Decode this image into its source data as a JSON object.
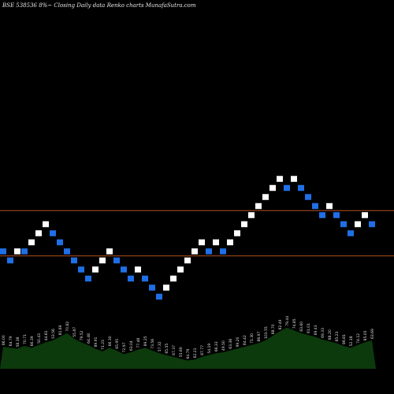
{
  "chart_data": {
    "type": "renko",
    "title": "BSE 538536  8%~  Closing Daily data  Renko  charts MunafaSutra.com",
    "colors": {
      "background": "#000000",
      "up_brick": "#ffffff",
      "down_brick": "#1f6fe6",
      "resistance_line": "#b4501e",
      "volume_area": "#0c3a0c",
      "volume_label": "#e0e0e0"
    },
    "reference_lines": [
      {
        "name": "upper",
        "level": 15.5
      },
      {
        "name": "lower",
        "level": 10.5
      }
    ],
    "price_range": [
      -3,
      37
    ],
    "bricks": [
      {
        "level": 11,
        "dir": "down"
      },
      {
        "level": 10,
        "dir": "down"
      },
      {
        "level": 11,
        "dir": "up"
      },
      {
        "level": 11,
        "dir": "down"
      },
      {
        "level": 12,
        "dir": "up"
      },
      {
        "level": 13,
        "dir": "up"
      },
      {
        "level": 14,
        "dir": "up"
      },
      {
        "level": 13,
        "dir": "down"
      },
      {
        "level": 12,
        "dir": "down"
      },
      {
        "level": 11,
        "dir": "down"
      },
      {
        "level": 10,
        "dir": "down"
      },
      {
        "level": 9,
        "dir": "down"
      },
      {
        "level": 8,
        "dir": "down"
      },
      {
        "level": 9,
        "dir": "up"
      },
      {
        "level": 10,
        "dir": "up"
      },
      {
        "level": 11,
        "dir": "up"
      },
      {
        "level": 10,
        "dir": "down"
      },
      {
        "level": 9,
        "dir": "down"
      },
      {
        "level": 8,
        "dir": "down"
      },
      {
        "level": 9,
        "dir": "up"
      },
      {
        "level": 8,
        "dir": "down"
      },
      {
        "level": 7,
        "dir": "down"
      },
      {
        "level": 6,
        "dir": "down"
      },
      {
        "level": 7,
        "dir": "up"
      },
      {
        "level": 8,
        "dir": "up"
      },
      {
        "level": 9,
        "dir": "up"
      },
      {
        "level": 10,
        "dir": "up"
      },
      {
        "level": 11,
        "dir": "up"
      },
      {
        "level": 12,
        "dir": "up"
      },
      {
        "level": 11,
        "dir": "down"
      },
      {
        "level": 12,
        "dir": "up"
      },
      {
        "level": 11,
        "dir": "down"
      },
      {
        "level": 12,
        "dir": "up"
      },
      {
        "level": 13,
        "dir": "up"
      },
      {
        "level": 14,
        "dir": "up"
      },
      {
        "level": 15,
        "dir": "up"
      },
      {
        "level": 16,
        "dir": "up"
      },
      {
        "level": 17,
        "dir": "up"
      },
      {
        "level": 18,
        "dir": "up"
      },
      {
        "level": 19,
        "dir": "up"
      },
      {
        "level": 18,
        "dir": "down"
      },
      {
        "level": 19,
        "dir": "up"
      },
      {
        "level": 18,
        "dir": "down"
      },
      {
        "level": 17,
        "dir": "down"
      },
      {
        "level": 16,
        "dir": "down"
      },
      {
        "level": 15,
        "dir": "down"
      },
      {
        "level": 16,
        "dir": "up"
      },
      {
        "level": 15,
        "dir": "down"
      },
      {
        "level": 14,
        "dir": "down"
      },
      {
        "level": 13,
        "dir": "down"
      },
      {
        "level": 14,
        "dir": "up"
      },
      {
        "level": 15,
        "dir": "up"
      },
      {
        "level": 14,
        "dir": "down"
      }
    ],
    "volume": {
      "values": [
        0.48,
        0.46,
        0.44,
        0.5,
        0.46,
        0.52,
        0.58,
        0.62,
        0.7,
        0.78,
        0.66,
        0.58,
        0.52,
        0.44,
        0.38,
        0.46,
        0.4,
        0.32,
        0.36,
        0.42,
        0.46,
        0.4,
        0.34,
        0.3,
        0.26,
        0.22,
        0.18,
        0.2,
        0.26,
        0.3,
        0.34,
        0.36,
        0.4,
        0.44,
        0.48,
        0.52,
        0.56,
        0.62,
        0.72,
        0.82,
        0.9,
        0.84,
        0.78,
        0.74,
        0.7,
        0.64,
        0.6,
        0.56,
        0.5,
        0.46,
        0.52,
        0.58,
        0.62
      ],
      "labels": [
        "86.00",
        "64.79",
        "58.38",
        "70.71",
        "66.39",
        "50.43",
        "44.61",
        "53.56",
        "81.69",
        "70.82",
        "55.87",
        "79.52",
        "64.48",
        "89.91",
        "71.23",
        "66.30",
        "65.95",
        "72.97",
        "63.04",
        "77.48",
        "89.25",
        "73.56",
        "57.32",
        "65.55",
        "67.37",
        "55.69",
        "64.79",
        "62.21",
        "87.77",
        "54.19",
        "66.33",
        "49.50",
        "63.38",
        "99.20",
        "84.42",
        "71.30",
        "86.97",
        "103.55",
        "88.70",
        "82.49",
        "79.44",
        "74.85",
        "83.60",
        "91.01",
        "69.43",
        "69.33",
        "88.20",
        "85.23",
        "86.81",
        "52.18",
        "74.12",
        "85.05",
        "63.69"
      ]
    }
  }
}
